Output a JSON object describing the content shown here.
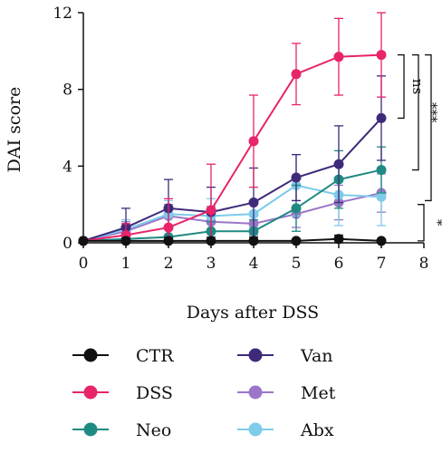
{
  "chart_data": {
    "type": "line",
    "xlabel": "Days after DSS",
    "ylabel": "DAI score",
    "xlim": [
      0,
      8
    ],
    "ylim": [
      0,
      12
    ],
    "x_ticks": [
      0,
      1,
      2,
      3,
      4,
      5,
      6,
      7,
      8
    ],
    "y_ticks": [
      0,
      4,
      8,
      12
    ],
    "grid": false,
    "legend_position": "bottom",
    "x": [
      0,
      1,
      2,
      3,
      4,
      5,
      6,
      7
    ],
    "series": [
      {
        "name": "CTR",
        "color": "#111111",
        "values": [
          0.1,
          0.1,
          0.1,
          0.1,
          0.1,
          0.1,
          0.2,
          0.1
        ],
        "errors": [
          0.1,
          0.1,
          0.1,
          0.1,
          0.2,
          0.1,
          0.2,
          0.1
        ]
      },
      {
        "name": "DSS",
        "color": "#e8246a",
        "values": [
          0.1,
          0.4,
          0.8,
          1.7,
          5.3,
          8.8,
          9.7,
          9.8
        ],
        "errors": [
          0.1,
          0.6,
          1.5,
          2.4,
          2.4,
          1.6,
          2.0,
          2.2
        ]
      },
      {
        "name": "Neo",
        "color": "#1f8a82",
        "values": [
          0.1,
          0.2,
          0.3,
          0.6,
          0.6,
          1.8,
          3.3,
          3.8
        ],
        "errors": [
          0.1,
          0.3,
          0.4,
          0.5,
          0.6,
          1.2,
          1.5,
          1.2
        ]
      },
      {
        "name": "Van",
        "color": "#3f2a7a",
        "values": [
          0.1,
          0.8,
          1.8,
          1.6,
          2.1,
          3.4,
          4.1,
          6.5
        ],
        "errors": [
          0.1,
          1.0,
          1.5,
          1.3,
          1.8,
          1.2,
          2.0,
          2.2
        ]
      },
      {
        "name": "Met",
        "color": "#9b76c8",
        "values": [
          0.1,
          0.6,
          1.4,
          1.1,
          1.0,
          1.5,
          2.1,
          2.6
        ],
        "errors": [
          0.1,
          0.5,
          0.6,
          0.8,
          0.6,
          0.7,
          0.9,
          1.0
        ]
      },
      {
        "name": "Abx",
        "color": "#7ecbea",
        "values": [
          0.1,
          0.7,
          1.5,
          1.4,
          1.5,
          3.0,
          2.5,
          2.4
        ],
        "errors": [
          0.1,
          0.5,
          0.7,
          0.9,
          0.7,
          1.6,
          1.6,
          1.5
        ]
      }
    ],
    "annotations": [
      {
        "text": "ns",
        "from": 9.8,
        "to": 6.5
      },
      {
        "text": "***",
        "from": 9.8,
        "to": 3.8
      },
      {
        "text": "***",
        "from": 9.8,
        "to": 2.2
      },
      {
        "text": "*",
        "from": 2.0,
        "to": 0.1
      }
    ]
  }
}
